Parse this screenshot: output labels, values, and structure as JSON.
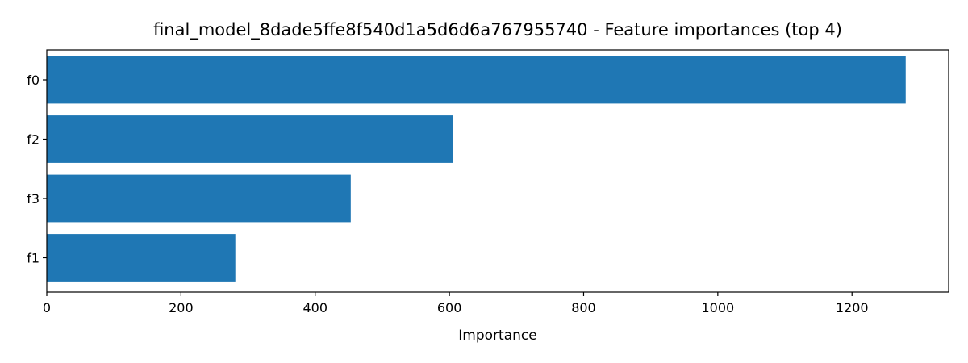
{
  "chart_data": {
    "type": "bar",
    "orientation": "horizontal",
    "title": "final_model_8dade5ffe8f540d1a5d6d6a767955740 - Feature importances (top 4)",
    "xlabel": "Importance",
    "ylabel": "",
    "categories": [
      "f0",
      "f2",
      "f3",
      "f1"
    ],
    "values": [
      1280,
      605,
      453,
      281
    ],
    "xlim": [
      0,
      1344
    ],
    "xticks": [
      0,
      200,
      400,
      600,
      800,
      1000,
      1200
    ],
    "xtick_labels": [
      "0",
      "200",
      "400",
      "600",
      "800",
      "1000",
      "1200"
    ],
    "bar_color": "#1f77b4",
    "grid": false,
    "legend": "none"
  }
}
